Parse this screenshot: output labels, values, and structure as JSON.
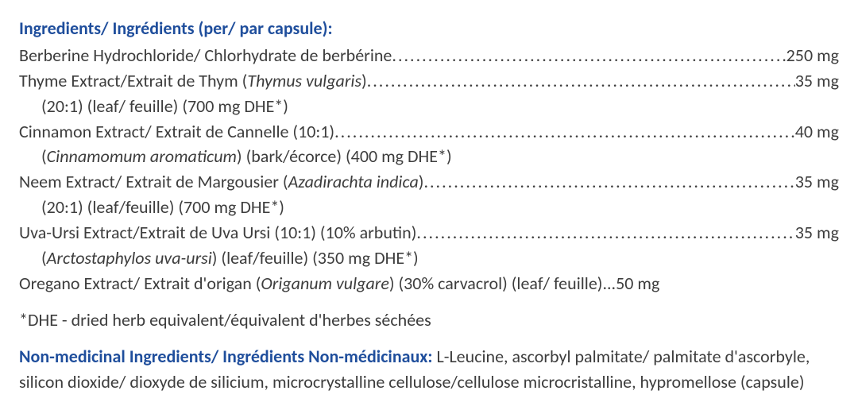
{
  "colors": {
    "heading": "#1f4e9c",
    "body": "#3d3d3d",
    "background": "#ffffff"
  },
  "typography": {
    "font_family": "Calibri",
    "font_size_pt": 16,
    "line_height": 1.45,
    "heading_weight": 700
  },
  "heading": "Ingredients/ Ingrédients (per/ par capsule):",
  "items": [
    {
      "label_plain": "Berberine Hydrochloride/ Chlorhydrate de berbérine",
      "label_italic": "",
      "label_after": "",
      "amount": "250 mg",
      "sub": ""
    },
    {
      "label_plain": "Thyme Extract/Extrait de Thym (",
      "label_italic": "Thymus vulgaris",
      "label_after": ")",
      "amount": "35 mg",
      "sub": "(20:1) (leaf/ feuille) (700 mg DHE*)"
    },
    {
      "label_plain": "Cinnamon Extract/ Extrait de Cannelle (10:1)",
      "label_italic": "",
      "label_after": "",
      "amount": "40 mg",
      "sub_pre": "(",
      "sub_italic": "Cinnamomum aromaticum",
      "sub_post": ") (bark/écorce) (400 mg DHE*)"
    },
    {
      "label_plain": "Neem Extract/ Extrait de Margousier (",
      "label_italic": "Azadirachta indica",
      "label_after": ")",
      "amount": "35 mg",
      "sub": "(20:1) (leaf/feuille) (700 mg DHE*)"
    },
    {
      "label_plain": "Uva-Ursi Extract/Extrait de Uva Ursi (10:1) (10% arbutin)",
      "label_italic": "",
      "label_after": "",
      "amount": "35 mg",
      "sub_pre": "(",
      "sub_italic": "Arctostaphylos uva-ursi",
      "sub_post": ") (leaf/feuille) (350 mg DHE*)"
    },
    {
      "label_plain": "Oregano Extract/ Extrait d'origan (",
      "label_italic": "Origanum vulgare",
      "label_after": ") (30% carvacrol) (leaf/ feuille)...",
      "amount": "50 mg",
      "no_leader": true,
      "sub": ""
    }
  ],
  "footnote": "*DHE - dried herb equivalent/équivalent d'herbes séchées",
  "nonmed_heading": "Non-medicinal Ingredients/ Ingrédients Non-médicinaux: ",
  "nonmed_text": "L-Leucine, ascorbyl palmitate/ palmitate d'ascorbyle, silicon dioxide/ dioxyde de silicium, microcrystalline cellulose/cellulose microcristalline, hypromellose (capsule)"
}
